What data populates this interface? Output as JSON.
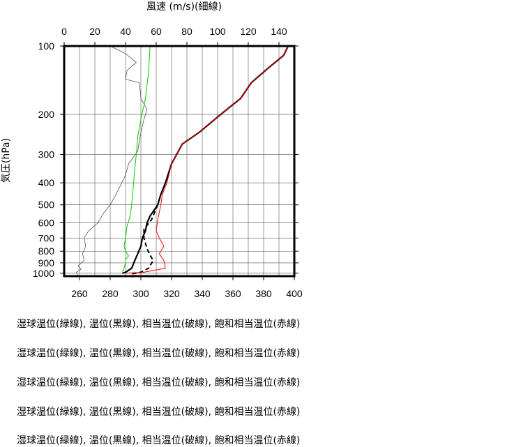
{
  "chart_data": {
    "type": "line",
    "top_axis": {
      "label": "風速 (m/s)(細線)",
      "range": [
        0,
        150
      ],
      "ticks": [
        "0",
        "20",
        "40",
        "60",
        "80",
        "100",
        "120",
        "140"
      ],
      "tick_values": [
        0,
        20,
        40,
        60,
        80,
        100,
        120,
        140
      ]
    },
    "bottom_axis": {
      "label": "",
      "range": [
        250,
        400
      ],
      "ticks": [
        "260",
        "280",
        "300",
        "320",
        "340",
        "360",
        "380",
        "400"
      ],
      "tick_values": [
        260,
        280,
        300,
        320,
        340,
        360,
        380,
        400
      ]
    },
    "y_axis": {
      "label": "気圧(hPa)",
      "scale": "log",
      "inverted": true,
      "range": [
        1030,
        100
      ],
      "ticks": [
        "100",
        "200",
        "300",
        "400",
        "500",
        "600",
        "700",
        "800",
        "900",
        "1000"
      ],
      "tick_values": [
        100,
        200,
        300,
        400,
        500,
        600,
        700,
        800,
        900,
        1000
      ]
    },
    "grid": true,
    "series": [
      {
        "kind": "wind",
        "color": "#555555",
        "style": "thin",
        "x_axis": "top",
        "points": [
          [
            30,
            100
          ],
          [
            40,
            108
          ],
          [
            47,
            118
          ],
          [
            41,
            128
          ],
          [
            40,
            140
          ],
          [
            49,
            145
          ],
          [
            50,
            170
          ],
          [
            54,
            190
          ],
          [
            52,
            210
          ],
          [
            51,
            225
          ],
          [
            50,
            240
          ],
          [
            49,
            260
          ],
          [
            48,
            290
          ],
          [
            42,
            330
          ],
          [
            40,
            370
          ],
          [
            36,
            420
          ],
          [
            33,
            460
          ],
          [
            30,
            500
          ],
          [
            26,
            540
          ],
          [
            22,
            600
          ],
          [
            16,
            650
          ],
          [
            13,
            700
          ],
          [
            14,
            760
          ],
          [
            12,
            820
          ],
          [
            13,
            880
          ],
          [
            9,
            930
          ],
          [
            11,
            960
          ],
          [
            8,
            990
          ],
          [
            9,
            1030
          ]
        ]
      },
      {
        "kind": "wet_bulb_potential_temperature",
        "color": "#00cc00",
        "style": "solid",
        "x_axis": "bottom",
        "points": [
          [
            306,
            100
          ],
          [
            305,
            130
          ],
          [
            303,
            170
          ],
          [
            300,
            210
          ],
          [
            298,
            250
          ],
          [
            297,
            300
          ],
          [
            296,
            350
          ],
          [
            295,
            420
          ],
          [
            294,
            500
          ],
          [
            293,
            560
          ],
          [
            291,
            620
          ],
          [
            290,
            700
          ],
          [
            289,
            760
          ],
          [
            290,
            800
          ],
          [
            292,
            840
          ],
          [
            290,
            870
          ],
          [
            290,
            900
          ],
          [
            289,
            950
          ],
          [
            288,
            990
          ]
        ]
      },
      {
        "kind": "potential_temperature",
        "color": "#000000",
        "style": "bold",
        "x_axis": "bottom",
        "points": [
          [
            396,
            100
          ],
          [
            393,
            110
          ],
          [
            383,
            125
          ],
          [
            372,
            145
          ],
          [
            365,
            170
          ],
          [
            352,
            200
          ],
          [
            338,
            240
          ],
          [
            327,
            270
          ],
          [
            320,
            330
          ],
          [
            316,
            400
          ],
          [
            313,
            450
          ],
          [
            311,
            500
          ],
          [
            306,
            560
          ],
          [
            304,
            600
          ],
          [
            303,
            650
          ],
          [
            301,
            700
          ],
          [
            300,
            760
          ],
          [
            298,
            820
          ],
          [
            296,
            880
          ],
          [
            294,
            950
          ],
          [
            290,
            990
          ],
          [
            288,
            1000
          ]
        ]
      },
      {
        "kind": "equivalent_potential_temperature",
        "color": "#000000",
        "style": "dashed",
        "x_axis": "bottom",
        "points": [
          [
            311,
            500
          ],
          [
            307,
            580
          ],
          [
            302,
            640
          ],
          [
            302,
            700
          ],
          [
            304,
            780
          ],
          [
            306,
            830
          ],
          [
            308,
            880
          ],
          [
            305,
            950
          ],
          [
            300,
            990
          ],
          [
            293,
            1010
          ]
        ]
      },
      {
        "kind": "saturated_equivalent_potential_temperature",
        "color": "#ff0000",
        "style": "solid",
        "x_axis": "bottom",
        "points": [
          [
            396,
            100
          ],
          [
            393,
            110
          ],
          [
            383,
            125
          ],
          [
            372,
            145
          ],
          [
            365,
            170
          ],
          [
            352,
            200
          ],
          [
            338,
            240
          ],
          [
            327,
            270
          ],
          [
            320,
            330
          ],
          [
            317,
            400
          ],
          [
            314,
            450
          ],
          [
            313,
            500
          ],
          [
            311,
            580
          ],
          [
            310,
            650
          ],
          [
            312,
            700
          ],
          [
            315,
            760
          ],
          [
            312,
            820
          ],
          [
            315,
            880
          ],
          [
            316,
            950
          ],
          [
            302,
            990
          ],
          [
            290,
            1000
          ]
        ]
      }
    ]
  },
  "captions": [
    "湿球温位(緑線), 温位(黒線), 相当温位(破線), 飽和相当温位(赤線)",
    "湿球温位(緑線), 温位(黒線), 相当温位(破線), 飽和相当温位(赤線)",
    "湿球温位(緑線), 温位(黒線), 相当温位(破線), 飽和相当温位(赤線)",
    "湿球温位(緑線), 温位(黒線), 相当温位(破線), 飽和相当温位(赤線)",
    "湿球温位(緑線), 温位(黒線), 相当温位(破線), 飽和相当温位(赤線)"
  ]
}
